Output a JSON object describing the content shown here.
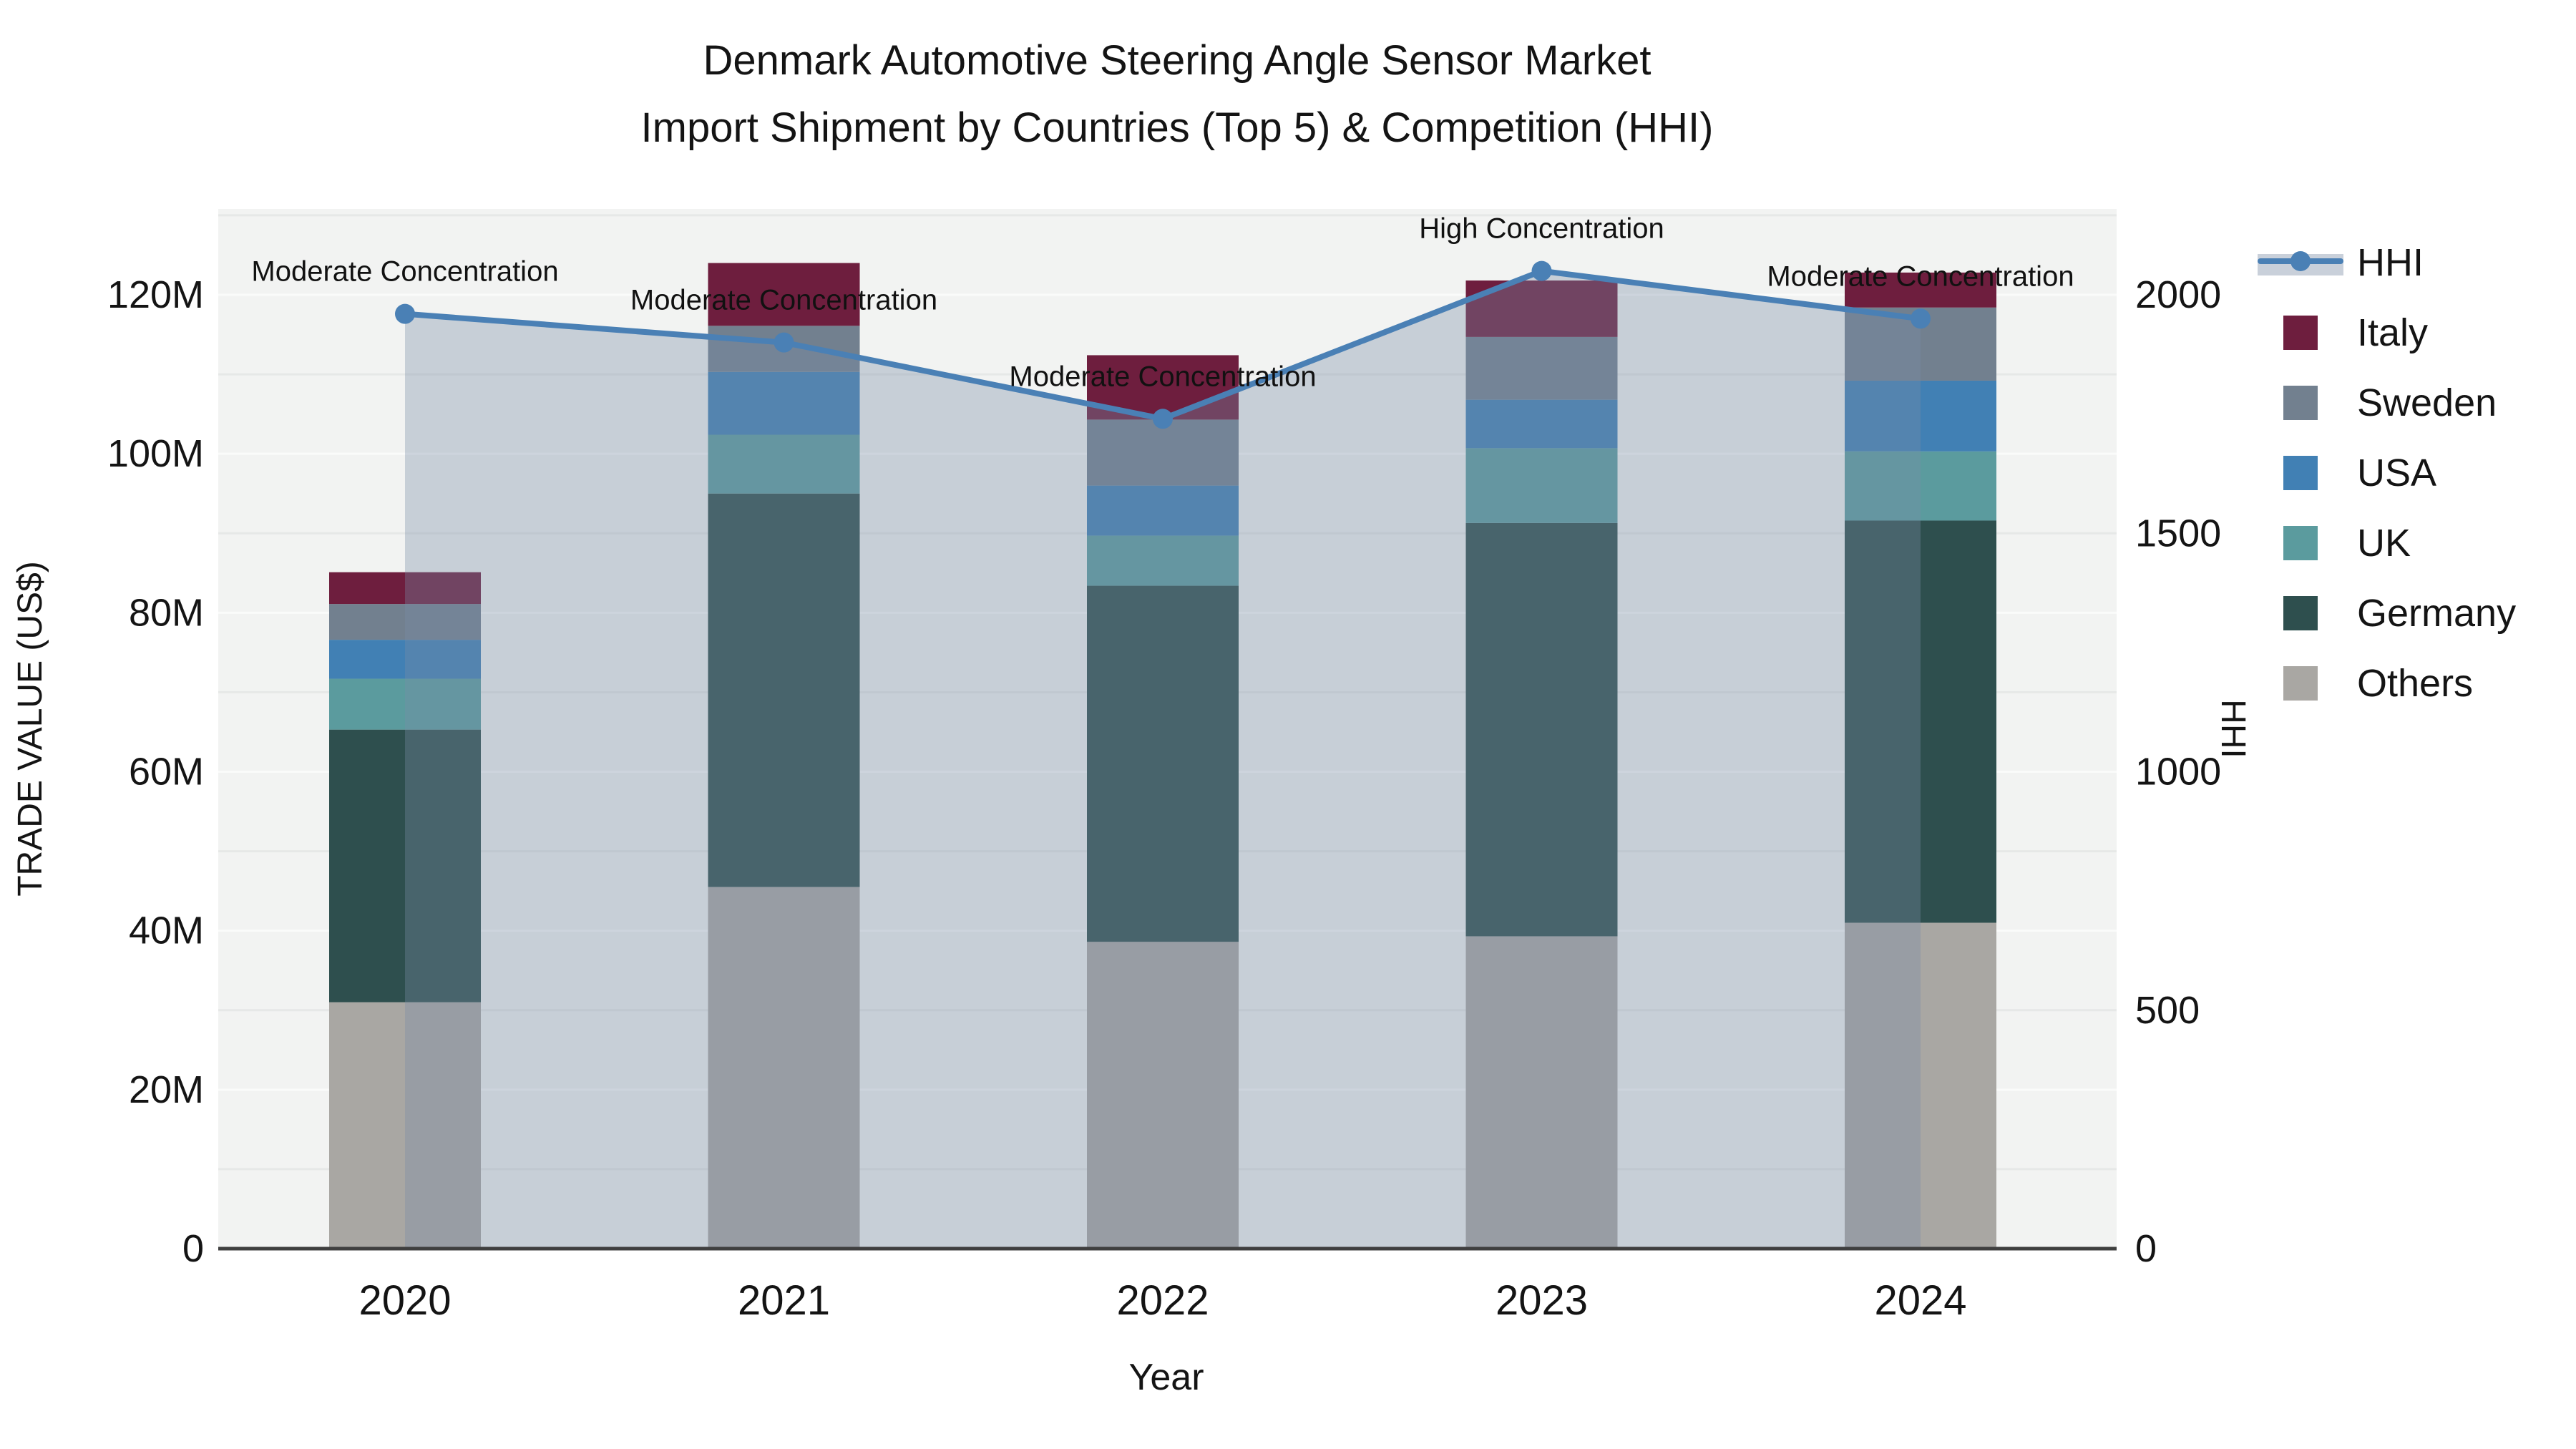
{
  "title": {
    "line1": "Denmark Automotive Steering Angle Sensor Market",
    "line2": "Import Shipment by Countries (Top 5) & Competition (HHI)"
  },
  "axes": {
    "y_left": {
      "title": "TRADE VALUE (US$)",
      "ticks": [
        "0",
        "20M",
        "40M",
        "60M",
        "80M",
        "100M",
        "120M"
      ]
    },
    "y_right": {
      "title": "HHI",
      "ticks": [
        "0",
        "500",
        "1000",
        "1500",
        "2000"
      ]
    },
    "x": {
      "title": "Year",
      "ticks": [
        "2020",
        "2021",
        "2022",
        "2023",
        "2024"
      ]
    }
  },
  "legend": [
    {
      "label": "HHI",
      "type": "line",
      "color": "#4a80b5"
    },
    {
      "label": "Italy",
      "type": "swatch",
      "color": "#6e1e3e"
    },
    {
      "label": "Sweden",
      "type": "swatch",
      "color": "#72808f"
    },
    {
      "label": "USA",
      "type": "swatch",
      "color": "#4180b4"
    },
    {
      "label": "UK",
      "type": "swatch",
      "color": "#5b9b9e"
    },
    {
      "label": "Germany",
      "type": "swatch",
      "color": "#2e4f4e"
    },
    {
      "label": "Others",
      "type": "swatch",
      "color": "#a9a7a3"
    }
  ],
  "chart_data": {
    "type": "combo-stacked-bar-line",
    "title": "Denmark Automotive Steering Angle Sensor Market — Import Shipment by Countries (Top 5) & Competition (HHI)",
    "xlabel": "Year",
    "ylabel_left": "TRADE VALUE (US$)",
    "ylabel_right": "HHI",
    "ylim_left_M": [
      0,
      131
    ],
    "ylim_right": [
      0,
      2180
    ],
    "grid": "horizontal, every 10M",
    "legend_position": "right",
    "categories": [
      "2020",
      "2021",
      "2022",
      "2023",
      "2024"
    ],
    "series": [
      {
        "name": "Others",
        "color": "#a9a7a3",
        "values_M": [
          31.0,
          45.5,
          38.6,
          39.3,
          41.0
        ]
      },
      {
        "name": "Germany",
        "color": "#2e4f4e",
        "values_M": [
          34.3,
          49.5,
          44.8,
          52.0,
          50.6
        ]
      },
      {
        "name": "UK",
        "color": "#5b9b9e",
        "values_M": [
          6.4,
          7.4,
          6.3,
          9.4,
          8.7
        ]
      },
      {
        "name": "USA",
        "color": "#4180b4",
        "values_M": [
          4.9,
          7.9,
          6.3,
          6.1,
          8.9
        ]
      },
      {
        "name": "Sweden",
        "color": "#72808f",
        "values_M": [
          4.5,
          5.8,
          8.3,
          7.9,
          9.2
        ]
      },
      {
        "name": "Italy",
        "color": "#6e1e3e",
        "values_M": [
          4.0,
          7.9,
          8.1,
          7.1,
          4.4
        ]
      }
    ],
    "totals_M": [
      85.1,
      124.0,
      112.4,
      121.8,
      122.8
    ],
    "hhi": {
      "name": "HHI",
      "values": [
        1960,
        1900,
        1740,
        2050,
        1950
      ],
      "line_color": "#4a80b5",
      "area_fill": "rgba(120,140,165,0.35)"
    },
    "annotations": [
      "Moderate Concentration",
      "Moderate Concentration",
      "Moderate Concentration",
      "High Concentration",
      "Moderate Concentration"
    ]
  }
}
